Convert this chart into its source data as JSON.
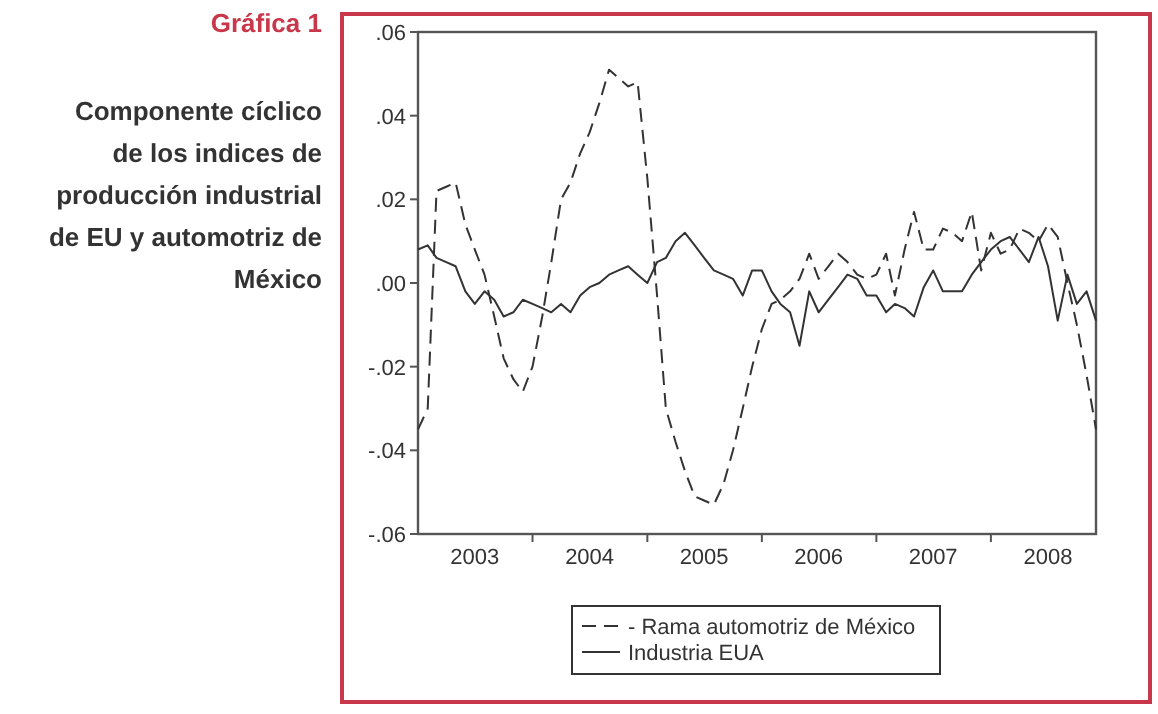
{
  "chart_data": {
    "type": "line",
    "title": "Gráfica 1",
    "subtitle": "Componente cíclico\nde los indices de\nproducción industrial\nde EU y automotriz de\nMéxico",
    "x": [
      "2003-01",
      "2003-02",
      "2003-03",
      "2003-04",
      "2003-05",
      "2003-06",
      "2003-07",
      "2003-08",
      "2003-09",
      "2003-10",
      "2003-11",
      "2003-12",
      "2004-01",
      "2004-02",
      "2004-03",
      "2004-04",
      "2004-05",
      "2004-06",
      "2004-07",
      "2004-08",
      "2004-09",
      "2004-10",
      "2004-11",
      "2004-12",
      "2005-01",
      "2005-02",
      "2005-03",
      "2005-04",
      "2005-05",
      "2005-06",
      "2005-07",
      "2005-08",
      "2005-09",
      "2005-10",
      "2005-11",
      "2005-12",
      "2006-01",
      "2006-02",
      "2006-03",
      "2006-04",
      "2006-05",
      "2006-06",
      "2006-07",
      "2006-08",
      "2006-09",
      "2006-10",
      "2006-11",
      "2006-12",
      "2007-01",
      "2007-02",
      "2007-03",
      "2007-04",
      "2007-05",
      "2007-06",
      "2007-07",
      "2007-08",
      "2007-09",
      "2007-10",
      "2007-11",
      "2007-12",
      "2008-01",
      "2008-02",
      "2008-03",
      "2008-04",
      "2008-05",
      "2008-06",
      "2008-07",
      "2008-08",
      "2008-09",
      "2008-10",
      "2008-11",
      "2008-12"
    ],
    "series": [
      {
        "name": "- Rama automotriz de México",
        "color": "#333333",
        "line_style": "dashed",
        "values": [
          -0.035,
          -0.03,
          0.022,
          0.023,
          0.024,
          0.014,
          0.008,
          0.002,
          -0.008,
          -0.018,
          -0.023,
          -0.026,
          -0.02,
          -0.008,
          0.005,
          0.02,
          0.024,
          0.031,
          0.036,
          0.043,
          0.051,
          0.049,
          0.047,
          0.048,
          0.025,
          -0.003,
          -0.03,
          -0.038,
          -0.045,
          -0.051,
          -0.052,
          -0.053,
          -0.048,
          -0.04,
          -0.03,
          -0.02,
          -0.011,
          -0.005,
          -0.004,
          -0.002,
          0.001,
          0.007,
          0.001,
          0.004,
          0.007,
          0.005,
          0.002,
          0.001,
          0.002,
          0.007,
          -0.003,
          0.008,
          0.017,
          0.008,
          0.008,
          0.013,
          0.012,
          0.01,
          0.017,
          0.003,
          0.012,
          0.007,
          0.008,
          0.013,
          0.012,
          0.01,
          0.014,
          0.011,
          0.0,
          -0.01,
          -0.022,
          -0.035
        ]
      },
      {
        "name": "Industria EUA",
        "color": "#333333",
        "line_style": "solid",
        "values": [
          0.008,
          0.009,
          0.006,
          0.005,
          0.004,
          -0.002,
          -0.005,
          -0.002,
          -0.004,
          -0.008,
          -0.007,
          -0.004,
          -0.005,
          -0.006,
          -0.007,
          -0.005,
          -0.007,
          -0.003,
          -0.001,
          0.0,
          0.002,
          0.003,
          0.004,
          0.002,
          0.0,
          0.005,
          0.006,
          0.01,
          0.012,
          0.009,
          0.006,
          0.003,
          0.002,
          0.001,
          -0.003,
          0.003,
          0.003,
          -0.002,
          -0.005,
          -0.007,
          -0.015,
          -0.002,
          -0.007,
          -0.004,
          -0.001,
          0.002,
          0.001,
          -0.003,
          -0.003,
          -0.007,
          -0.005,
          -0.006,
          -0.008,
          -0.001,
          0.003,
          -0.002,
          -0.002,
          -0.002,
          0.002,
          0.005,
          0.008,
          0.01,
          0.011,
          0.008,
          0.005,
          0.011,
          0.004,
          -0.009,
          0.002,
          -0.005,
          -0.002,
          -0.009
        ]
      }
    ],
    "xlim": [
      "2003-01",
      "2008-12"
    ],
    "xticks": [
      {
        "value": "2003-07",
        "label": "2003"
      },
      {
        "value": "2004-01",
        "label": null
      },
      {
        "value": "2004-07",
        "label": "2004"
      },
      {
        "value": "2005-01",
        "label": null
      },
      {
        "value": "2005-07",
        "label": "2005"
      },
      {
        "value": "2006-01",
        "label": null
      },
      {
        "value": "2006-07",
        "label": "2006"
      },
      {
        "value": "2007-01",
        "label": null
      },
      {
        "value": "2007-07",
        "label": "2007"
      },
      {
        "value": "2008-01",
        "label": null
      },
      {
        "value": "2008-07",
        "label": "2008"
      }
    ],
    "ylim": [
      -0.06,
      0.06
    ],
    "yticks": [
      {
        "value": -0.06,
        "label": "-.06"
      },
      {
        "value": -0.04,
        "label": "-.04"
      },
      {
        "value": -0.02,
        "label": "-.02"
      },
      {
        "value": 0,
        "label": ".00"
      },
      {
        "value": 0.02,
        "label": ".02"
      },
      {
        "value": 0.04,
        "label": ".04"
      },
      {
        "value": 0.06,
        "label": ".06"
      }
    ],
    "grid": false,
    "legend": "bottom"
  }
}
